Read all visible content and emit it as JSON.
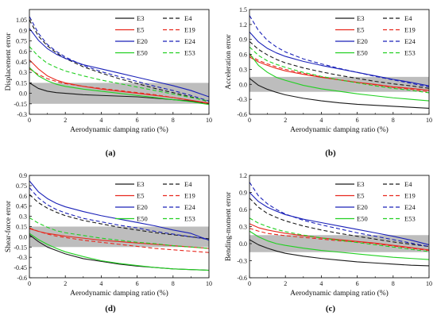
{
  "figure": {
    "xlabel": "Aerodynamic damping ratio (%)",
    "legend_names": [
      "E3",
      "E4",
      "E5",
      "E19",
      "E20",
      "E24",
      "E50",
      "E53"
    ],
    "colors": {
      "black": "#1a1a1a",
      "red": "#e8281e",
      "blue": "#1a21b8",
      "green": "#22d022",
      "band": "#bdbdbd"
    }
  },
  "chart_data": [
    {
      "type": "line",
      "panel_label": "(a)",
      "ylabel": "Displacement error",
      "xlabel": "Aerodynamic damping ratio (%)",
      "xlim": [
        0,
        10
      ],
      "ylim": [
        -0.3,
        1.2
      ],
      "xticks": [
        "0",
        "2",
        "4",
        "6",
        "8",
        "10"
      ],
      "yticks": [
        "-0.3",
        "-0.15",
        "0.0",
        "0.15",
        "0.3",
        "0.45",
        "0.6",
        "0.75",
        "0.9",
        "1.05"
      ],
      "band": [
        -0.15,
        0.15
      ],
      "legend_position": "top-right",
      "x": [
        0,
        0.5,
        1,
        1.5,
        2,
        3,
        4,
        5,
        6,
        7,
        8,
        9,
        10
      ],
      "series": [
        {
          "name": "E3",
          "style": "solid",
          "color": "black",
          "values": [
            0.15,
            0.07,
            0.03,
            0.01,
            0.0,
            -0.02,
            -0.03,
            -0.04,
            -0.05,
            -0.07,
            -0.09,
            -0.11,
            -0.15
          ]
        },
        {
          "name": "E4",
          "style": "dashed",
          "color": "black",
          "values": [
            1.05,
            0.82,
            0.68,
            0.58,
            0.5,
            0.38,
            0.29,
            0.21,
            0.14,
            0.07,
            0.01,
            -0.05,
            -0.12
          ]
        },
        {
          "name": "E5",
          "style": "solid",
          "color": "red",
          "values": [
            0.48,
            0.35,
            0.25,
            0.19,
            0.15,
            0.1,
            0.06,
            0.03,
            0.0,
            -0.03,
            -0.06,
            -0.1,
            -0.14
          ]
        },
        {
          "name": "E19",
          "style": "dashed",
          "color": "red",
          "values": [
            0.35,
            0.27,
            0.21,
            0.17,
            0.14,
            0.1,
            0.07,
            0.04,
            0.01,
            -0.02,
            -0.06,
            -0.1,
            -0.15
          ]
        },
        {
          "name": "E20",
          "style": "solid",
          "color": "blue",
          "values": [
            0.93,
            0.76,
            0.64,
            0.56,
            0.5,
            0.41,
            0.35,
            0.29,
            0.23,
            0.17,
            0.11,
            0.04,
            -0.05
          ]
        },
        {
          "name": "E24",
          "style": "dashed",
          "color": "blue",
          "values": [
            1.1,
            0.86,
            0.7,
            0.6,
            0.52,
            0.4,
            0.31,
            0.24,
            0.17,
            0.1,
            0.04,
            -0.03,
            -0.11
          ]
        },
        {
          "name": "E50",
          "style": "solid",
          "color": "green",
          "values": [
            0.37,
            0.25,
            0.18,
            0.13,
            0.1,
            0.06,
            0.03,
            0.0,
            -0.03,
            -0.06,
            -0.09,
            -0.12,
            -0.16
          ]
        },
        {
          "name": "E53",
          "style": "dashed",
          "color": "green",
          "values": [
            0.67,
            0.53,
            0.43,
            0.37,
            0.32,
            0.25,
            0.19,
            0.14,
            0.09,
            0.04,
            -0.01,
            -0.06,
            -0.11
          ]
        }
      ]
    },
    {
      "type": "line",
      "panel_label": "(b)",
      "ylabel": "Acceleration error",
      "xlabel": "Aerodynamic damping ratio (%)",
      "xlim": [
        0,
        10
      ],
      "ylim": [
        -0.6,
        1.5
      ],
      "xticks": [
        "0",
        "2",
        "4",
        "6",
        "8",
        "10"
      ],
      "yticks": [
        "-0.6",
        "-0.3",
        "0.0",
        "0.3",
        "0.6",
        "0.9",
        "1.2",
        "1.5"
      ],
      "band": [
        -0.15,
        0.15
      ],
      "legend_position": "top-right",
      "x": [
        0,
        0.5,
        1,
        1.5,
        2,
        3,
        4,
        5,
        6,
        7,
        8,
        9,
        10
      ],
      "series": [
        {
          "name": "E3",
          "style": "solid",
          "color": "black",
          "values": [
            0.12,
            -0.02,
            -0.1,
            -0.16,
            -0.21,
            -0.28,
            -0.33,
            -0.37,
            -0.4,
            -0.42,
            -0.44,
            -0.46,
            -0.48
          ]
        },
        {
          "name": "E4",
          "style": "dashed",
          "color": "black",
          "values": [
            0.86,
            0.7,
            0.59,
            0.5,
            0.43,
            0.33,
            0.25,
            0.18,
            0.12,
            0.06,
            0.01,
            -0.03,
            -0.08
          ]
        },
        {
          "name": "E5",
          "style": "solid",
          "color": "red",
          "values": [
            0.55,
            0.45,
            0.38,
            0.32,
            0.27,
            0.2,
            0.14,
            0.09,
            0.04,
            0.0,
            -0.05,
            -0.08,
            -0.12
          ]
        },
        {
          "name": "E19",
          "style": "dashed",
          "color": "red",
          "values": [
            0.58,
            0.48,
            0.41,
            0.35,
            0.3,
            0.22,
            0.15,
            0.09,
            0.04,
            -0.01,
            -0.06,
            -0.1,
            -0.15
          ]
        },
        {
          "name": "E20",
          "style": "solid",
          "color": "blue",
          "values": [
            1.05,
            0.85,
            0.72,
            0.63,
            0.56,
            0.46,
            0.38,
            0.31,
            0.24,
            0.17,
            0.1,
            0.04,
            -0.03
          ]
        },
        {
          "name": "E24",
          "style": "dashed",
          "color": "blue",
          "values": [
            1.38,
            1.08,
            0.88,
            0.75,
            0.65,
            0.51,
            0.41,
            0.32,
            0.24,
            0.16,
            0.09,
            0.02,
            -0.05
          ]
        },
        {
          "name": "E50",
          "style": "solid",
          "color": "green",
          "values": [
            0.62,
            0.38,
            0.24,
            0.14,
            0.08,
            -0.02,
            -0.09,
            -0.14,
            -0.19,
            -0.23,
            -0.27,
            -0.3,
            -0.33
          ]
        },
        {
          "name": "E53",
          "style": "dashed",
          "color": "green",
          "values": [
            0.75,
            0.58,
            0.47,
            0.4,
            0.34,
            0.24,
            0.16,
            0.09,
            0.03,
            -0.03,
            -0.08,
            -0.12,
            -0.17
          ]
        }
      ]
    },
    {
      "type": "line",
      "panel_label": "(d)",
      "ylabel": "Shear-force error",
      "xlabel": "Aerodynamic damping ratio (%)",
      "xlim": [
        0,
        10
      ],
      "ylim": [
        -0.6,
        0.9
      ],
      "xticks": [
        "0",
        "2",
        "4",
        "6",
        "8",
        "10"
      ],
      "yticks": [
        "-0.6",
        "-0.45",
        "-0.3",
        "-0.15",
        "0.0",
        "0.15",
        "0.3",
        "0.45",
        "0.6",
        "0.75",
        "0.9"
      ],
      "band": [
        -0.15,
        0.15
      ],
      "legend_position": "top-right",
      "x": [
        0,
        0.5,
        1,
        1.5,
        2,
        3,
        4,
        5,
        6,
        7,
        8,
        9,
        10
      ],
      "series": [
        {
          "name": "E3",
          "style": "solid",
          "color": "black",
          "values": [
            0.03,
            -0.07,
            -0.15,
            -0.2,
            -0.25,
            -0.32,
            -0.36,
            -0.4,
            -0.43,
            -0.45,
            -0.47,
            -0.48,
            -0.49
          ]
        },
        {
          "name": "E4",
          "style": "dashed",
          "color": "black",
          "values": [
            0.62,
            0.5,
            0.42,
            0.36,
            0.31,
            0.24,
            0.19,
            0.14,
            0.1,
            0.06,
            0.03,
            0.0,
            -0.03
          ]
        },
        {
          "name": "E5",
          "style": "solid",
          "color": "red",
          "values": [
            0.12,
            0.08,
            0.05,
            0.03,
            0.01,
            -0.02,
            -0.05,
            -0.07,
            -0.09,
            -0.11,
            -0.13,
            -0.15,
            -0.17
          ]
        },
        {
          "name": "E19",
          "style": "dashed",
          "color": "red",
          "values": [
            0.13,
            0.08,
            0.04,
            0.01,
            -0.01,
            -0.05,
            -0.08,
            -0.11,
            -0.14,
            -0.17,
            -0.19,
            -0.21,
            -0.23
          ]
        },
        {
          "name": "E20",
          "style": "solid",
          "color": "blue",
          "values": [
            0.82,
            0.66,
            0.56,
            0.49,
            0.44,
            0.37,
            0.31,
            0.26,
            0.21,
            0.16,
            0.1,
            0.05,
            -0.05
          ]
        },
        {
          "name": "E24",
          "style": "dashed",
          "color": "blue",
          "values": [
            0.72,
            0.57,
            0.47,
            0.4,
            0.35,
            0.27,
            0.22,
            0.17,
            0.13,
            0.08,
            0.04,
            0.0,
            -0.04
          ]
        },
        {
          "name": "E50",
          "style": "solid",
          "color": "green",
          "values": [
            0.05,
            -0.04,
            -0.11,
            -0.17,
            -0.22,
            -0.29,
            -0.35,
            -0.39,
            -0.42,
            -0.45,
            -0.47,
            -0.48,
            -0.49
          ]
        },
        {
          "name": "E53",
          "style": "dashed",
          "color": "green",
          "values": [
            0.28,
            0.2,
            0.14,
            0.09,
            0.06,
            0.02,
            -0.02,
            -0.05,
            -0.08,
            -0.1,
            -0.13,
            -0.15,
            -0.17
          ]
        }
      ]
    },
    {
      "type": "line",
      "panel_label": "(c)",
      "ylabel": "Bending-moment error",
      "xlabel": "Aerodynamic damping ratio (%)",
      "xlim": [
        0,
        10
      ],
      "ylim": [
        -0.6,
        1.2
      ],
      "xticks": [
        "0",
        "2",
        "4",
        "6",
        "8",
        "10"
      ],
      "yticks": [
        "-0.6",
        "-0.3",
        "0.0",
        "0.3",
        "0.6",
        "0.9",
        "1.2"
      ],
      "band": [
        -0.15,
        0.15
      ],
      "legend_position": "top-right",
      "x": [
        0,
        0.5,
        1,
        1.5,
        2,
        3,
        4,
        5,
        6,
        7,
        8,
        9,
        10
      ],
      "series": [
        {
          "name": "E3",
          "style": "solid",
          "color": "black",
          "values": [
            0.07,
            -0.02,
            -0.08,
            -0.13,
            -0.17,
            -0.22,
            -0.26,
            -0.29,
            -0.32,
            -0.34,
            -0.36,
            -0.38,
            -0.39
          ]
        },
        {
          "name": "E4",
          "style": "dashed",
          "color": "black",
          "values": [
            0.8,
            0.64,
            0.53,
            0.46,
            0.4,
            0.31,
            0.24,
            0.18,
            0.13,
            0.08,
            0.03,
            -0.01,
            -0.05
          ]
        },
        {
          "name": "E5",
          "style": "solid",
          "color": "red",
          "values": [
            0.35,
            0.28,
            0.24,
            0.21,
            0.18,
            0.14,
            0.1,
            0.07,
            0.04,
            0.01,
            -0.03,
            -0.07,
            -0.11
          ]
        },
        {
          "name": "E19",
          "style": "dashed",
          "color": "red",
          "values": [
            0.27,
            0.22,
            0.18,
            0.16,
            0.14,
            0.11,
            0.08,
            0.05,
            0.03,
            0.0,
            -0.04,
            -0.08,
            -0.12
          ]
        },
        {
          "name": "E20",
          "style": "solid",
          "color": "blue",
          "values": [
            0.9,
            0.74,
            0.64,
            0.57,
            0.51,
            0.43,
            0.37,
            0.31,
            0.25,
            0.19,
            0.13,
            0.06,
            -0.02
          ]
        },
        {
          "name": "E24",
          "style": "dashed",
          "color": "blue",
          "values": [
            1.08,
            0.84,
            0.7,
            0.6,
            0.52,
            0.41,
            0.33,
            0.26,
            0.19,
            0.13,
            0.07,
            0.01,
            -0.05
          ]
        },
        {
          "name": "E50",
          "style": "solid",
          "color": "green",
          "values": [
            0.22,
            0.12,
            0.05,
            0.0,
            -0.03,
            -0.08,
            -0.12,
            -0.15,
            -0.18,
            -0.21,
            -0.24,
            -0.26,
            -0.28
          ]
        },
        {
          "name": "E53",
          "style": "dashed",
          "color": "green",
          "values": [
            0.45,
            0.36,
            0.3,
            0.25,
            0.21,
            0.15,
            0.1,
            0.06,
            0.02,
            -0.02,
            -0.06,
            -0.1,
            -0.14
          ]
        }
      ]
    }
  ]
}
